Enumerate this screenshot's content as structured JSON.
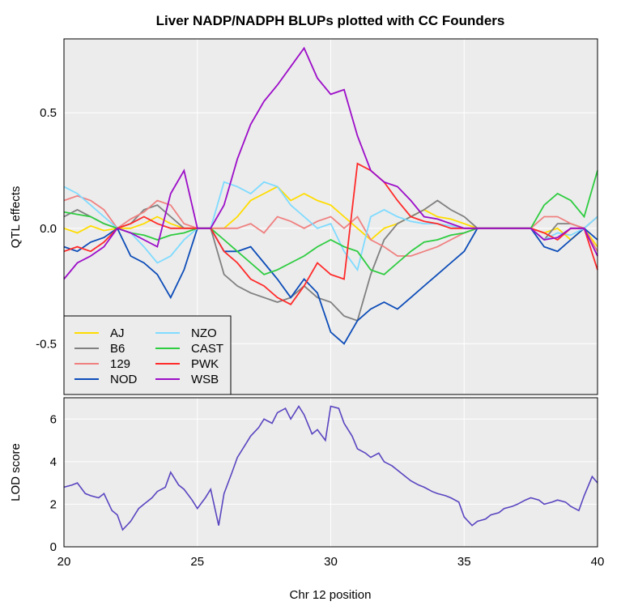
{
  "chart_data": [
    {
      "panel": "top",
      "type": "line",
      "title": "Liver NADP/NADPH BLUPs plotted with CC Founders",
      "ylabel": "QTL effects",
      "xlim": [
        20,
        40
      ],
      "ylim": [
        -0.72,
        0.82
      ],
      "yticks": [
        -0.5,
        0.0,
        0.5
      ],
      "ytick_labels": [
        "-0.5",
        "0.0",
        "0.5"
      ],
      "grid": true,
      "legend_position": "bottom-left",
      "series": [
        {
          "name": "AJ",
          "color": "#FFDC00",
          "x": [
            20,
            20.5,
            21,
            21.5,
            22,
            22.5,
            23,
            23.5,
            24,
            24.5,
            25,
            25.5,
            26,
            26.5,
            27,
            27.5,
            28,
            28.5,
            29,
            29.5,
            30,
            30.5,
            31,
            31.5,
            32,
            32.5,
            33,
            33.5,
            34,
            34.5,
            35,
            35.5,
            36,
            36.5,
            37,
            37.5,
            38,
            38.5,
            39,
            39.5,
            40
          ],
          "y": [
            0.0,
            -0.02,
            0.01,
            -0.01,
            0.0,
            0.0,
            0.02,
            0.05,
            0.02,
            0.0,
            0.0,
            0.0,
            0.0,
            0.05,
            0.12,
            0.15,
            0.18,
            0.12,
            0.15,
            0.12,
            0.1,
            0.05,
            0.0,
            -0.05,
            0.0,
            0.02,
            0.05,
            0.08,
            0.05,
            0.04,
            0.02,
            0.0,
            0.0,
            0.0,
            0.0,
            0.0,
            -0.02,
            0.0,
            -0.05,
            0.0,
            -0.08
          ]
        },
        {
          "name": "B6",
          "color": "#808080",
          "x": [
            20,
            20.5,
            21,
            21.5,
            22,
            22.5,
            23,
            23.5,
            24,
            24.5,
            25,
            25.5,
            26,
            26.5,
            27,
            27.5,
            28,
            28.5,
            29,
            29.5,
            30,
            30.5,
            31,
            31.5,
            32,
            32.5,
            33,
            33.5,
            34,
            34.5,
            35,
            35.5,
            36,
            36.5,
            37,
            37.5,
            38,
            38.5,
            39,
            39.5,
            40
          ],
          "y": [
            0.05,
            0.08,
            0.05,
            0.02,
            0.0,
            0.02,
            0.08,
            0.1,
            0.05,
            0.0,
            0.0,
            0.0,
            -0.2,
            -0.25,
            -0.28,
            -0.3,
            -0.32,
            -0.3,
            -0.25,
            -0.3,
            -0.32,
            -0.38,
            -0.4,
            -0.2,
            -0.05,
            0.02,
            0.05,
            0.08,
            0.12,
            0.08,
            0.05,
            0.0,
            0.0,
            0.0,
            0.0,
            0.0,
            -0.05,
            0.02,
            0.02,
            0.0,
            0.05
          ]
        },
        {
          "name": "129",
          "color": "#F08080",
          "x": [
            20,
            20.5,
            21,
            21.5,
            22,
            22.5,
            23,
            23.5,
            24,
            24.5,
            25,
            25.5,
            26,
            26.5,
            27,
            27.5,
            28,
            28.5,
            29,
            29.5,
            30,
            30.5,
            31,
            31.5,
            32,
            32.5,
            33,
            33.5,
            34,
            34.5,
            35,
            35.5,
            36,
            36.5,
            37,
            37.5,
            38,
            38.5,
            39,
            39.5,
            40
          ],
          "y": [
            0.12,
            0.14,
            0.12,
            0.08,
            0.0,
            0.04,
            0.07,
            0.12,
            0.1,
            0.02,
            0.0,
            0.0,
            0.0,
            0.0,
            0.02,
            -0.02,
            0.05,
            0.03,
            0.0,
            0.03,
            0.05,
            0.0,
            0.05,
            -0.05,
            -0.08,
            -0.12,
            -0.12,
            -0.1,
            -0.08,
            -0.05,
            -0.02,
            0.0,
            0.0,
            0.0,
            0.0,
            0.0,
            0.05,
            0.05,
            0.02,
            0.0,
            -0.1
          ]
        },
        {
          "name": "NOD",
          "color": "#0C4CB8",
          "x": [
            20,
            20.5,
            21,
            21.5,
            22,
            22.5,
            23,
            23.5,
            24,
            24.5,
            25,
            25.5,
            26,
            26.5,
            27,
            27.5,
            28,
            28.5,
            29,
            29.5,
            30,
            30.5,
            31,
            31.5,
            32,
            32.5,
            33,
            33.5,
            34,
            34.5,
            35,
            35.5,
            36,
            36.5,
            37,
            37.5,
            38,
            38.5,
            39,
            39.5,
            40
          ],
          "y": [
            -0.08,
            -0.1,
            -0.06,
            -0.04,
            0.0,
            -0.12,
            -0.15,
            -0.2,
            -0.3,
            -0.18,
            0.0,
            0.0,
            -0.1,
            -0.1,
            -0.08,
            -0.15,
            -0.22,
            -0.3,
            -0.22,
            -0.28,
            -0.45,
            -0.5,
            -0.4,
            -0.35,
            -0.32,
            -0.35,
            -0.3,
            -0.25,
            -0.2,
            -0.15,
            -0.1,
            0.0,
            0.0,
            0.0,
            0.0,
            0.0,
            -0.08,
            -0.1,
            -0.05,
            0.0,
            -0.05
          ]
        },
        {
          "name": "NZO",
          "color": "#7FDBFF",
          "x": [
            20,
            20.5,
            21,
            21.5,
            22,
            22.5,
            23,
            23.5,
            24,
            24.5,
            25,
            25.5,
            26,
            26.5,
            27,
            27.5,
            28,
            28.5,
            29,
            29.5,
            30,
            30.5,
            31,
            31.5,
            32,
            32.5,
            33,
            33.5,
            34,
            34.5,
            35,
            35.5,
            36,
            36.5,
            37,
            37.5,
            38,
            38.5,
            39,
            39.5,
            40
          ],
          "y": [
            0.18,
            0.15,
            0.1,
            0.05,
            0.0,
            -0.02,
            -0.08,
            -0.15,
            -0.12,
            -0.05,
            0.0,
            0.0,
            0.2,
            0.18,
            0.15,
            0.2,
            0.18,
            0.1,
            0.05,
            0.0,
            0.02,
            -0.1,
            -0.18,
            0.05,
            0.08,
            0.05,
            0.03,
            0.02,
            0.02,
            0.01,
            0.0,
            0.0,
            0.0,
            0.0,
            0.0,
            0.0,
            -0.05,
            -0.02,
            -0.03,
            0.0,
            0.05
          ]
        },
        {
          "name": "CAST",
          "color": "#2ECC40",
          "x": [
            20,
            20.5,
            21,
            21.5,
            22,
            22.5,
            23,
            23.5,
            24,
            24.5,
            25,
            25.5,
            26,
            26.5,
            27,
            27.5,
            28,
            28.5,
            29,
            29.5,
            30,
            30.5,
            31,
            31.5,
            32,
            32.5,
            33,
            33.5,
            34,
            34.5,
            35,
            35.5,
            36,
            36.5,
            37,
            37.5,
            38,
            38.5,
            39,
            39.5,
            40
          ],
          "y": [
            0.07,
            0.06,
            0.05,
            0.02,
            0.0,
            -0.02,
            -0.03,
            -0.05,
            -0.03,
            -0.02,
            0.0,
            0.0,
            -0.05,
            -0.1,
            -0.15,
            -0.2,
            -0.18,
            -0.15,
            -0.12,
            -0.08,
            -0.05,
            -0.08,
            -0.1,
            -0.18,
            -0.2,
            -0.15,
            -0.1,
            -0.06,
            -0.05,
            -0.03,
            -0.02,
            0.0,
            0.0,
            0.0,
            0.0,
            0.0,
            0.1,
            0.15,
            0.12,
            0.05,
            0.25
          ]
        },
        {
          "name": "PWK",
          "color": "#FF2A2A",
          "x": [
            20,
            20.5,
            21,
            21.5,
            22,
            22.5,
            23,
            23.5,
            24,
            24.5,
            25,
            25.5,
            26,
            26.5,
            27,
            27.5,
            28,
            28.5,
            29,
            29.5,
            30,
            30.5,
            31,
            31.5,
            32,
            32.5,
            33,
            33.5,
            34,
            34.5,
            35,
            35.5,
            36,
            36.5,
            37,
            37.5,
            38,
            38.5,
            39,
            39.5,
            40
          ],
          "y": [
            -0.1,
            -0.08,
            -0.1,
            -0.06,
            0.0,
            0.02,
            0.05,
            0.02,
            0.0,
            0.0,
            0.0,
            0.0,
            -0.1,
            -0.15,
            -0.22,
            -0.25,
            -0.3,
            -0.33,
            -0.25,
            -0.15,
            -0.2,
            -0.22,
            0.28,
            0.25,
            0.2,
            0.12,
            0.05,
            0.03,
            0.02,
            0.0,
            0.0,
            0.0,
            0.0,
            0.0,
            0.0,
            0.0,
            -0.02,
            -0.05,
            0.0,
            0.0,
            -0.18
          ]
        },
        {
          "name": "WSB",
          "color": "#9C0DC8",
          "x": [
            20,
            20.5,
            21,
            21.5,
            22,
            22.5,
            23,
            23.5,
            24,
            24.5,
            25,
            25.5,
            26,
            26.5,
            27,
            27.5,
            28,
            28.5,
            29,
            29.5,
            30,
            30.5,
            31,
            31.5,
            32,
            32.5,
            33,
            33.5,
            34,
            34.5,
            35,
            35.5,
            36,
            36.5,
            37,
            37.5,
            38,
            38.5,
            39,
            39.5,
            40
          ],
          "y": [
            -0.22,
            -0.15,
            -0.12,
            -0.08,
            0.0,
            -0.02,
            -0.05,
            -0.08,
            0.15,
            0.25,
            0.0,
            0.0,
            0.1,
            0.3,
            0.45,
            0.55,
            0.62,
            0.7,
            0.78,
            0.65,
            0.58,
            0.6,
            0.4,
            0.25,
            0.2,
            0.18,
            0.12,
            0.05,
            0.04,
            0.02,
            0.0,
            0.0,
            0.0,
            0.0,
            0.0,
            0.0,
            -0.05,
            -0.04,
            0.0,
            0.0,
            -0.12
          ]
        }
      ],
      "legend_columns": [
        [
          "AJ",
          "B6",
          "129",
          "NOD"
        ],
        [
          "NZO",
          "CAST",
          "PWK",
          "WSB"
        ]
      ]
    },
    {
      "panel": "bottom",
      "type": "line",
      "xlabel": "Chr 12 position",
      "ylabel": "LOD score",
      "xlim": [
        20,
        40
      ],
      "ylim": [
        0,
        7
      ],
      "xticks": [
        20,
        25,
        30,
        35,
        40
      ],
      "xtick_labels": [
        "20",
        "25",
        "30",
        "35",
        "40"
      ],
      "yticks": [
        0,
        2,
        4,
        6
      ],
      "ytick_labels": [
        "0",
        "2",
        "4",
        "6"
      ],
      "grid": true,
      "series": [
        {
          "name": "",
          "color": "#5A44C0",
          "x": [
            20,
            20.3,
            20.5,
            20.8,
            21,
            21.3,
            21.5,
            21.8,
            22,
            22.2,
            22.5,
            22.8,
            23,
            23.3,
            23.5,
            23.8,
            24,
            24.3,
            24.5,
            24.8,
            25,
            25.3,
            25.5,
            25.8,
            26,
            26.3,
            26.5,
            26.8,
            27,
            27.3,
            27.5,
            27.8,
            28,
            28.3,
            28.5,
            28.8,
            29,
            29.3,
            29.5,
            29.8,
            30,
            30.3,
            30.5,
            30.8,
            31,
            31.3,
            31.5,
            31.8,
            32,
            32.3,
            32.5,
            32.8,
            33,
            33.3,
            33.5,
            33.8,
            34,
            34.3,
            34.5,
            34.8,
            35,
            35.3,
            35.5,
            35.8,
            36,
            36.3,
            36.5,
            36.8,
            37,
            37.3,
            37.5,
            37.8,
            38,
            38.3,
            38.5,
            38.8,
            39,
            39.3,
            39.5,
            39.8,
            40
          ],
          "y": [
            2.8,
            2.9,
            3.0,
            2.5,
            2.4,
            2.3,
            2.5,
            1.7,
            1.5,
            0.8,
            1.2,
            1.8,
            2.0,
            2.3,
            2.6,
            2.8,
            3.5,
            2.9,
            2.7,
            2.2,
            1.8,
            2.3,
            2.7,
            1.0,
            2.5,
            3.5,
            4.2,
            4.8,
            5.2,
            5.6,
            6.0,
            5.8,
            6.3,
            6.5,
            6.0,
            6.6,
            6.2,
            5.3,
            5.5,
            5.0,
            6.6,
            6.5,
            5.8,
            5.2,
            4.6,
            4.4,
            4.2,
            4.4,
            4.0,
            3.8,
            3.6,
            3.3,
            3.1,
            2.9,
            2.8,
            2.6,
            2.5,
            2.4,
            2.3,
            2.1,
            1.4,
            1.0,
            1.2,
            1.3,
            1.5,
            1.6,
            1.8,
            1.9,
            2.0,
            2.2,
            2.3,
            2.2,
            2.0,
            2.1,
            2.2,
            2.1,
            1.9,
            1.7,
            2.4,
            3.3,
            3.0
          ]
        }
      ]
    }
  ]
}
